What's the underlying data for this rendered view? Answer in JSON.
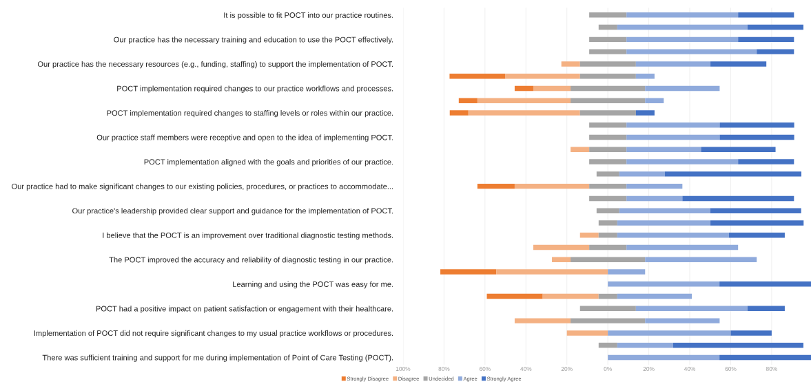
{
  "chart_data": {
    "type": "bar",
    "orientation": "horizontal",
    "categories": [
      "It is possible to fit POCT into our practice routines.",
      null,
      "Our practice has the necessary training and education to use the POCT effectively.",
      null,
      "Our practice has the necessary resources (e.g., funding, staffing) to support the implementation of POCT.",
      null,
      "POCT implementation required changes to our practice workflows and processes.",
      null,
      "POCT implementation required changes to staffing levels or roles within our practice.",
      null,
      "Our practice staff members were receptive and open to the idea of implementing POCT.",
      null,
      "POCT implementation aligned with the goals and priorities of our practice.",
      null,
      "Our practice had to make significant changes to our existing policies, procedures, or practices to accommodate...",
      null,
      "Our practice's leadership provided clear support and guidance for the implementation of POCT.",
      null,
      "I believe that the POCT is an improvement over traditional diagnostic testing methods.",
      null,
      "The POCT improved the accuracy and reliability of diagnostic testing in our practice.",
      null,
      "Learning and using the POCT was easy for me.",
      null,
      "POCT had a positive impact on patient satisfaction or engagement with their healthcare.",
      null,
      "Implementation of POCT did not require significant changes to my usual practice workflows or procedures.",
      null,
      "There was sufficient training and support for me during implementation of Point of Care Testing (POCT)."
    ],
    "series": [
      {
        "name": "Strongly Disagree",
        "color": "#ed7d31",
        "values": [
          null,
          null,
          null,
          null,
          null,
          27.3,
          9.1,
          9.1,
          9.1,
          null,
          null,
          null,
          null,
          null,
          18.2,
          null,
          null,
          null,
          null,
          null,
          null,
          27.3,
          null,
          27.3,
          null,
          null,
          null,
          null,
          null
        ],
        "base": [
          null,
          null,
          null,
          null,
          null,
          -77.3,
          -45.5,
          -72.8,
          -77.2,
          null,
          null,
          null,
          null,
          null,
          -63.7,
          null,
          null,
          null,
          null,
          null,
          null,
          -81.8,
          null,
          -59.1,
          null,
          null,
          null,
          null,
          null
        ]
      },
      {
        "name": "Disagree",
        "color": "#f4b183",
        "values": [
          null,
          null,
          null,
          null,
          9.1,
          36.4,
          18.2,
          45.5,
          54.5,
          null,
          null,
          9.1,
          null,
          null,
          36.4,
          null,
          null,
          null,
          9.1,
          27.3,
          9.1,
          54.5,
          null,
          27.3,
          null,
          27.3,
          20,
          null,
          null
        ],
        "base": [
          null,
          null,
          null,
          null,
          -22.7,
          -50.0,
          -36.4,
          -63.7,
          -68.1,
          null,
          null,
          -18.2,
          null,
          null,
          -45.5,
          null,
          null,
          null,
          -13.6,
          -36.4,
          -27.3,
          -54.5,
          null,
          -31.8,
          null,
          -45.5,
          -20,
          null,
          null
        ]
      },
      {
        "name": "Undecided",
        "color": "#a5a5a5",
        "values": [
          18.2,
          9.1,
          18.2,
          18.2,
          27.3,
          27.3,
          36.4,
          36.4,
          27.3,
          18.2,
          18.2,
          18.2,
          18.2,
          11.1,
          18.2,
          18.2,
          11.1,
          9.1,
          9.1,
          18.2,
          36.4,
          null,
          null,
          9.1,
          27.3,
          36.4,
          null,
          9.1,
          null
        ],
        "base": [
          -9.1,
          -4.5,
          -9.1,
          -9.1,
          -13.6,
          -13.6,
          -18.2,
          -18.2,
          -13.6,
          -9.1,
          -9.1,
          -9.1,
          -9.1,
          -5.5,
          -9.1,
          -9.1,
          -5.5,
          -4.5,
          -4.5,
          -9.1,
          -18.2,
          null,
          null,
          -4.5,
          -13.6,
          -18.2,
          null,
          -4.5,
          null
        ]
      },
      {
        "name": "Agree",
        "color": "#8faadc",
        "values": [
          54.5,
          63.6,
          54.5,
          63.6,
          36.4,
          9.1,
          36.4,
          9.1,
          null,
          45.5,
          45.5,
          36.4,
          54.5,
          22.2,
          27.3,
          27.3,
          44.4,
          45.5,
          54.5,
          54.5,
          54.5,
          18.2,
          54.5,
          36.4,
          54.5,
          36.4,
          60,
          27.3,
          54.5
        ],
        "base": [
          9.1,
          4.6,
          9.1,
          9.1,
          13.7,
          13.7,
          18.2,
          18.2,
          null,
          9.1,
          9.1,
          9.1,
          9.1,
          5.6,
          9.1,
          9.1,
          5.6,
          4.6,
          4.6,
          9.1,
          18.2,
          0,
          0,
          4.6,
          13.7,
          18.2,
          0,
          4.6,
          0
        ]
      },
      {
        "name": "Strongly Agree",
        "color": "#4472c4",
        "values": [
          27.3,
          27.3,
          27.3,
          18.2,
          27.3,
          null,
          null,
          null,
          9.1,
          36.4,
          36.4,
          36.4,
          27.3,
          66.7,
          null,
          54.5,
          44.4,
          45.5,
          27.3,
          null,
          null,
          null,
          45.5,
          null,
          18.2,
          null,
          20,
          63.6,
          45.5
        ],
        "base": [
          63.6,
          68.2,
          63.6,
          72.7,
          50.1,
          null,
          null,
          null,
          13.7,
          54.6,
          54.6,
          45.5,
          63.6,
          27.8,
          null,
          36.4,
          50.0,
          50.1,
          59.1,
          null,
          null,
          null,
          54.5,
          null,
          68.2,
          null,
          60,
          31.9,
          54.5
        ]
      }
    ],
    "xlim": [
      -100,
      100
    ],
    "xticks": [
      {
        "value": -100,
        "label": "100%"
      },
      {
        "value": -80,
        "label": "80%"
      },
      {
        "value": -60,
        "label": "60%"
      },
      {
        "value": -40,
        "label": "40%"
      },
      {
        "value": -20,
        "label": "20%"
      },
      {
        "value": 0,
        "label": "0%"
      },
      {
        "value": 20,
        "label": "20%"
      },
      {
        "value": 40,
        "label": "40%"
      },
      {
        "value": 60,
        "label": "60%"
      },
      {
        "value": 80,
        "label": "80%"
      }
    ],
    "grid": "x",
    "legend": "bottom"
  }
}
